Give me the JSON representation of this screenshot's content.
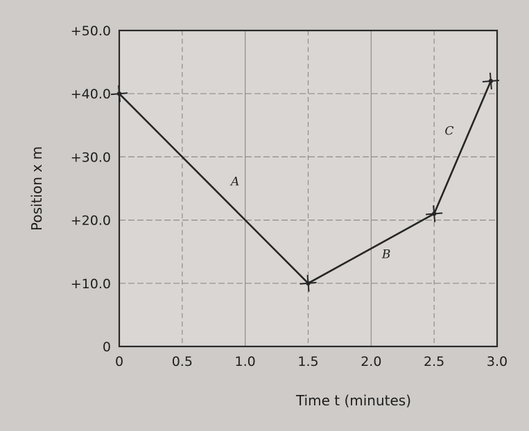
{
  "chart_data": {
    "type": "line",
    "xlabel": "Time t   (minutes)",
    "ylabel": "Position x   m",
    "x_ticks": [
      "0",
      "0.5",
      "1.0",
      "1.5",
      "2.0",
      "2.5",
      "3.0"
    ],
    "y_ticks": [
      "0",
      "+10.0",
      "+20.0",
      "+30.0",
      "+40.0",
      "+50.0"
    ],
    "xlim": [
      0,
      3.0
    ],
    "ylim": [
      0,
      50.0
    ],
    "grid": true,
    "series": [
      {
        "x": [
          0,
          1.5,
          2.5,
          2.95
        ],
        "y": [
          40.0,
          10.0,
          21.0,
          42.0
        ]
      }
    ],
    "segment_labels": [
      {
        "text": "A",
        "x": 0.92,
        "y": 25.5
      },
      {
        "text": "B",
        "x": 2.12,
        "y": 14.0
      },
      {
        "text": "C",
        "x": 2.62,
        "y": 33.5
      }
    ]
  }
}
